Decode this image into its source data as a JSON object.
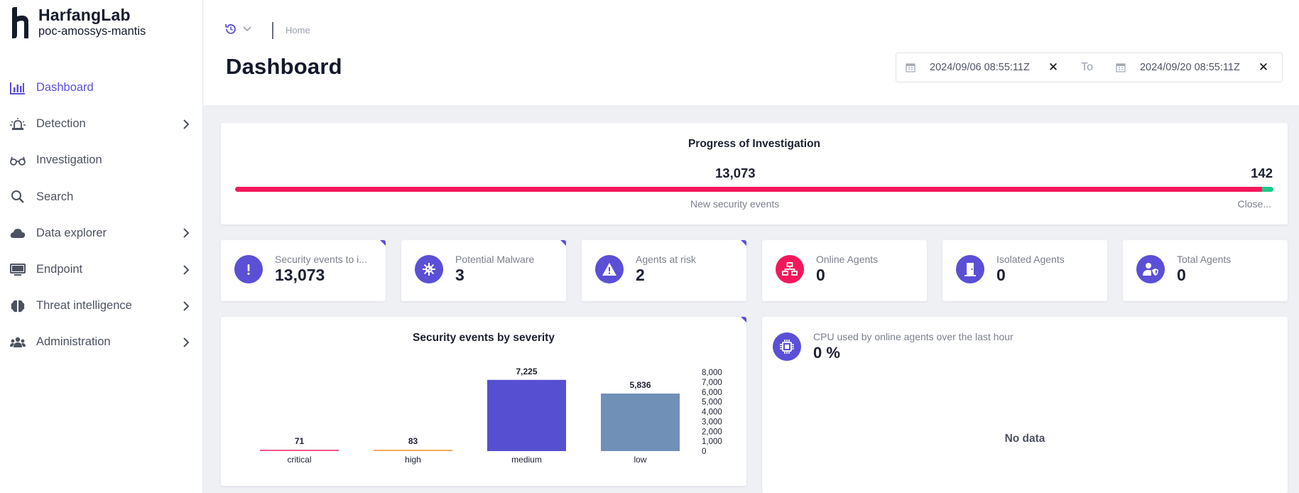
{
  "brand": {
    "name": "HarfangLab",
    "tenant": "poc-amossys-mantis"
  },
  "sidebar": {
    "items": [
      {
        "label": "Dashboard",
        "icon": "bar-chart-icon",
        "active": true,
        "expandable": false
      },
      {
        "label": "Detection",
        "icon": "siren-icon",
        "active": false,
        "expandable": true
      },
      {
        "label": "Investigation",
        "icon": "glasses-icon",
        "active": false,
        "expandable": false
      },
      {
        "label": "Search",
        "icon": "search-icon",
        "active": false,
        "expandable": false
      },
      {
        "label": "Data explorer",
        "icon": "cloud-icon",
        "active": false,
        "expandable": true
      },
      {
        "label": "Endpoint",
        "icon": "monitor-icon",
        "active": false,
        "expandable": true
      },
      {
        "label": "Threat intelligence",
        "icon": "brain-icon",
        "active": false,
        "expandable": true
      },
      {
        "label": "Administration",
        "icon": "users-icon",
        "active": false,
        "expandable": true
      }
    ]
  },
  "header": {
    "breadcrumb": "Home",
    "title": "Dashboard",
    "range": {
      "from": "2024/09/06 08:55:11Z",
      "to_label": "To",
      "to": "2024/09/20 08:55:11Z"
    }
  },
  "progress": {
    "title": "Progress of Investigation",
    "new_value": "13,073",
    "new_label": "New security events",
    "closed_value": "142",
    "closed_label": "Close...",
    "new_count": 13073,
    "closed_count": 142
  },
  "stats": [
    {
      "label": "Security events to i...",
      "value": "13,073",
      "icon": "exclamation-icon",
      "color": "#5b4fd6"
    },
    {
      "label": "Potential Malware",
      "value": "3",
      "icon": "virus-icon",
      "color": "#5b4fd6"
    },
    {
      "label": "Agents at risk",
      "value": "2",
      "icon": "warning-icon",
      "color": "#5b4fd6"
    },
    {
      "label": "Online Agents",
      "value": "0",
      "icon": "network-icon",
      "color": "#f2185a"
    },
    {
      "label": "Isolated Agents",
      "value": "0",
      "icon": "door-icon",
      "color": "#5b4fd6"
    },
    {
      "label": "Total Agents",
      "value": "0",
      "icon": "user-shield-icon",
      "color": "#5b4fd6"
    }
  ],
  "chart_data": {
    "type": "bar",
    "title": "Security events by severity",
    "categories": [
      "critical",
      "high",
      "medium",
      "low"
    ],
    "values": [
      71,
      83,
      7225,
      5836
    ],
    "value_labels": [
      "71",
      "83",
      "7,225",
      "5,836"
    ],
    "colors": [
      "#f0568a",
      "#f5a85a",
      "#574fd1",
      "#7090b8"
    ],
    "ylim": [
      0,
      8000
    ],
    "yticks": [
      "0",
      "1,000",
      "2,000",
      "3,000",
      "4,000",
      "5,000",
      "6,000",
      "7,000",
      "8,000"
    ],
    "ytick_values": [
      0,
      1000,
      2000,
      3000,
      4000,
      5000,
      6000,
      7000,
      8000
    ]
  },
  "cpu": {
    "label": "CPU used by online agents over the last hour",
    "value": "0 %",
    "empty_text": "No data"
  },
  "colors": {
    "accent": "#5b4fd6",
    "danger": "#f2185a",
    "success": "#1ec987"
  }
}
